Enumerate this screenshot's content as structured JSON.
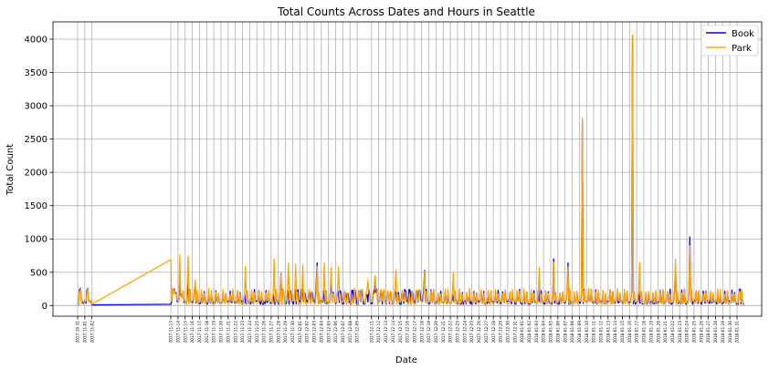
{
  "chart_data": {
    "type": "line",
    "title": "Total Counts Across Dates and Hours in Seattle",
    "xlabel": "Date",
    "ylabel": "Total Count",
    "ylim": [
      -160,
      4260
    ],
    "yticks": [
      0,
      500,
      1000,
      1500,
      2000,
      2500,
      3000,
      3500,
      4000
    ],
    "grid": true,
    "legend_position": "top-right",
    "x_dates": [
      "2017-10-31",
      "2017-11-01",
      "2017-11-02",
      "2017-11-13",
      "2017-11-14",
      "2017-11-15",
      "2017-11-16",
      "2017-11-17",
      "2017-11-18",
      "2017-11-19",
      "2017-11-20",
      "2017-11-21",
      "2017-11-22",
      "2017-11-23",
      "2017-11-24",
      "2017-11-25",
      "2017-11-26",
      "2017-11-27",
      "2017-11-28",
      "2017-11-29",
      "2017-11-30",
      "2017-12-01",
      "2017-12-02",
      "2017-12-03",
      "2017-12-04",
      "2017-12-05",
      "2017-12-06",
      "2017-12-07",
      "2017-12-08",
      "2017-12-09",
      "2017-12-11",
      "2017-12-12",
      "2017-12-13",
      "2017-12-14",
      "2017-12-15",
      "2017-12-16",
      "2017-12-17",
      "2017-12-18",
      "2017-12-19",
      "2017-12-20",
      "2017-12-21",
      "2017-12-22",
      "2017-12-23",
      "2017-12-24",
      "2017-12-25",
      "2017-12-26",
      "2017-12-27",
      "2017-12-28",
      "2017-12-29",
      "2017-12-30",
      "2017-12-31",
      "2018-01-01",
      "2018-01-02",
      "2018-01-03",
      "2018-01-04",
      "2018-01-05",
      "2018-01-06",
      "2018-01-07",
      "2018-01-08",
      "2018-01-09",
      "2018-01-10",
      "2018-01-11",
      "2018-01-12",
      "2018-01-13",
      "2018-01-14",
      "2018-01-15",
      "2018-01-16",
      "2018-01-17",
      "2018-01-18",
      "2018-01-19",
      "2018-01-20",
      "2018-01-21",
      "2018-01-22",
      "2018-01-23",
      "2018-01-24",
      "2018-01-25",
      "2018-01-26",
      "2018-01-27",
      "2018-01-28",
      "2018-01-29",
      "2018-01-30",
      "2018-01-31"
    ],
    "series": [
      {
        "name": "Book",
        "color": "#0000ff",
        "points": [
          [
            "2017-10-31",
            0
          ],
          [
            "2017-10-31T10",
            260
          ],
          [
            "2017-10-31T16",
            80
          ],
          [
            "2017-11-01T10",
            260
          ],
          [
            "2017-11-01T18",
            70
          ],
          [
            "2017-11-02",
            10
          ],
          [
            "2017-11-13",
            20
          ],
          [
            "2017-11-13T12",
            250
          ],
          [
            "2017-11-14",
            80
          ],
          [
            "2017-11-14T06",
            430
          ],
          [
            "2017-11-14T14",
            120
          ],
          [
            "2017-11-15T10",
            330
          ],
          [
            "2017-11-16T10",
            300
          ],
          [
            "2017-11-28T09",
            480
          ],
          [
            "2017-12-03T10",
            640
          ],
          [
            "2017-12-05T09",
            400
          ],
          [
            "2017-12-09",
            0
          ],
          [
            "2017-12-11",
            40
          ],
          [
            "2017-12-11T12",
            440
          ],
          [
            "2017-12-18T10",
            530
          ],
          [
            "2018-01-05T10",
            700
          ],
          [
            "2018-01-07T10",
            640
          ],
          [
            "2018-01-09T10",
            2790
          ],
          [
            "2018-01-16T10",
            4060
          ],
          [
            "2018-01-22T10",
            590
          ],
          [
            "2018-01-24T10",
            1030
          ],
          [
            "2018-01-31T10",
            250
          ],
          [
            "2018-01-31T23",
            0
          ]
        ]
      },
      {
        "name": "Park",
        "color": "#ffa500",
        "points": [
          [
            "2017-10-31",
            0
          ],
          [
            "2017-10-31T10",
            250
          ],
          [
            "2017-10-31T16",
            80
          ],
          [
            "2017-11-01T10",
            250
          ],
          [
            "2017-11-01T18",
            70
          ],
          [
            "2017-11-02",
            20
          ],
          [
            "2017-11-13",
            690
          ],
          [
            "2017-11-13T12",
            240
          ],
          [
            "2017-11-14",
            80
          ],
          [
            "2017-11-14T06",
            760
          ],
          [
            "2017-11-14T14",
            120
          ],
          [
            "2017-11-15T10",
            740
          ],
          [
            "2017-11-16T10",
            380
          ],
          [
            "2017-11-23T10",
            590
          ],
          [
            "2017-11-27T10",
            700
          ],
          [
            "2017-11-28T09",
            470
          ],
          [
            "2017-11-29T10",
            640
          ],
          [
            "2017-11-30T10",
            620
          ],
          [
            "2017-12-01T10",
            610
          ],
          [
            "2017-12-03T10",
            590
          ],
          [
            "2017-12-04T10",
            640
          ],
          [
            "2017-12-05T09",
            570
          ],
          [
            "2017-12-06T10",
            580
          ],
          [
            "2017-12-09",
            0
          ],
          [
            "2017-12-10T12",
            380
          ],
          [
            "2017-12-11T12",
            450
          ],
          [
            "2017-12-14T10",
            540
          ],
          [
            "2017-12-18T10",
            520
          ],
          [
            "2017-12-22T10",
            490
          ],
          [
            "2018-01-03T10",
            570
          ],
          [
            "2018-01-05T10",
            650
          ],
          [
            "2018-01-07T10",
            580
          ],
          [
            "2018-01-09T10",
            2810
          ],
          [
            "2018-01-16T10",
            4060
          ],
          [
            "2018-01-17T10",
            650
          ],
          [
            "2018-01-22T10",
            700
          ],
          [
            "2018-01-24T10",
            900
          ],
          [
            "2018-01-31T10",
            200
          ],
          [
            "2018-01-31T23",
            0
          ]
        ]
      }
    ]
  }
}
